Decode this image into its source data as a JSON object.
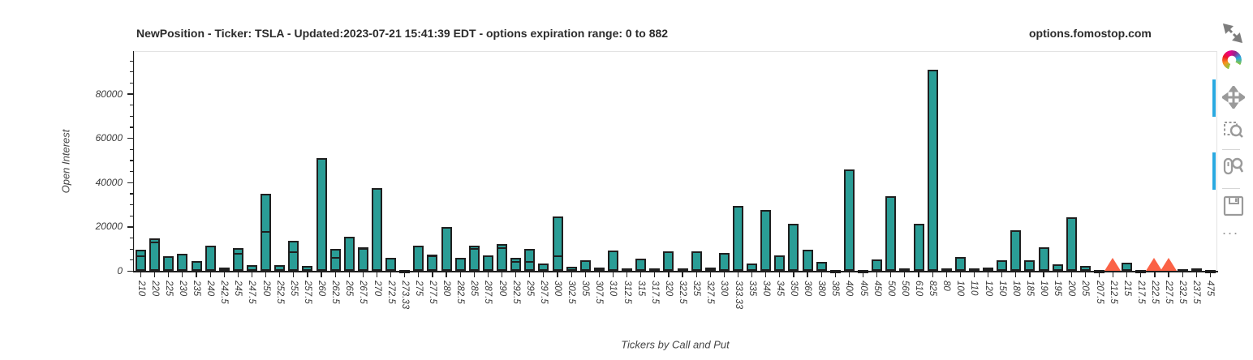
{
  "title": {
    "main": "NewPosition - Ticker: TSLA - Updated:2023-07-21 15:41:39 EDT - options expiration range: 0 to 882",
    "site": "options.fomostop.com"
  },
  "toolbar": {
    "tools": [
      {
        "name": "resize",
        "icon": "resize-arrows-icon",
        "active": false
      },
      {
        "name": "bokeh-logo",
        "icon": "bokeh-logo-icon",
        "active": false
      },
      {
        "name": "pan",
        "icon": "pan-arrows-icon",
        "active": true
      },
      {
        "name": "box-zoom",
        "icon": "box-zoom-icon",
        "active": false
      },
      {
        "name": "wheel-zoom",
        "icon": "wheel-zoom-icon",
        "active": true
      },
      {
        "name": "save",
        "icon": "save-floppy-icon",
        "active": false
      },
      {
        "name": "more",
        "icon": "ellipsis-icon",
        "label": "...",
        "active": false
      }
    ]
  },
  "chart_data": {
    "type": "bar",
    "title": "NewPosition - Ticker: TSLA - Updated:2023-07-21 15:41:39 EDT - options expiration range: 0 to 882",
    "xlabel": "Tickers by Call and Put",
    "ylabel": "Open Interest",
    "ylim": [
      0,
      99450
    ],
    "yticks": [
      0,
      20000,
      40000,
      60000,
      80000
    ],
    "minor_tick_step": 5000,
    "grid": false,
    "bar_color": "#2a9d96",
    "bar_outline": "#1f1f1f",
    "marker_color": "#fb6246",
    "marker_shape": "triangle",
    "categories": [
      "210",
      "220",
      "225",
      "230",
      "235",
      "240",
      "242.5",
      "245",
      "247.5",
      "250",
      "252.5",
      "255",
      "257.5",
      "260",
      "262.5",
      "265",
      "267.5",
      "270",
      "272.5",
      "273.33",
      "275",
      "277.5",
      "280",
      "282.5",
      "285",
      "287.5",
      "290",
      "292.5",
      "295",
      "297.5",
      "300",
      "302.5",
      "305",
      "307.5",
      "310",
      "312.5",
      "315",
      "317.5",
      "320",
      "322.5",
      "325",
      "327.5",
      "330",
      "333.33",
      "335",
      "340",
      "345",
      "350",
      "360",
      "380",
      "385",
      "400",
      "405",
      "450",
      "500",
      "560",
      "610",
      "825",
      "80",
      "100",
      "110",
      "120",
      "150",
      "180",
      "185",
      "190",
      "195",
      "200",
      "205",
      "207.5",
      "212.5",
      "215",
      "217.5",
      "222.5",
      "227.5",
      "232.5",
      "237.5",
      "475"
    ],
    "values": [
      9600,
      14900,
      6600,
      8000,
      4400,
      11400,
      1800,
      10500,
      2800,
      35100,
      2600,
      13800,
      2200,
      51000,
      10100,
      15700,
      10900,
      37500,
      5900,
      700,
      11500,
      7400,
      19800,
      5900,
      11400,
      7100,
      12100,
      5900,
      10000,
      3400,
      24600,
      2100,
      5000,
      1800,
      9400,
      1100,
      5700,
      1100,
      8800,
      1300,
      8800,
      1700,
      8100,
      29600,
      3600,
      27500,
      7000,
      21500,
      9700,
      4300,
      400,
      45800,
      400,
      5400,
      33700,
      1400,
      21300,
      91000,
      1200,
      6500,
      1200,
      1800,
      5000,
      18500,
      4900,
      10800,
      3100,
      24200,
      2300,
      300,
      0,
      3700,
      300,
      0,
      0,
      850,
      1200,
      400
    ],
    "splits": [
      6500,
      12500,
      null,
      null,
      null,
      null,
      null,
      7400,
      null,
      17400,
      null,
      8400,
      null,
      null,
      5700,
      null,
      9800,
      null,
      null,
      null,
      null,
      6300,
      null,
      null,
      9800,
      null,
      9900,
      3700,
      3900,
      null,
      6400,
      null,
      null,
      null,
      null,
      null,
      null,
      null,
      null,
      null,
      null,
      null,
      null,
      null,
      null,
      null,
      null,
      null,
      null,
      null,
      null,
      null,
      null,
      null,
      null,
      null,
      null,
      null,
      null,
      null,
      null,
      null,
      null,
      null,
      null,
      null,
      null,
      null,
      null,
      null,
      null,
      null,
      null,
      null,
      null,
      null,
      null,
      null
    ],
    "markers": [
      {
        "category": "212.5",
        "apex_value": 6200
      },
      {
        "category": "222.5",
        "apex_value": 6200
      },
      {
        "category": "227.5",
        "apex_value": 6200
      }
    ]
  }
}
